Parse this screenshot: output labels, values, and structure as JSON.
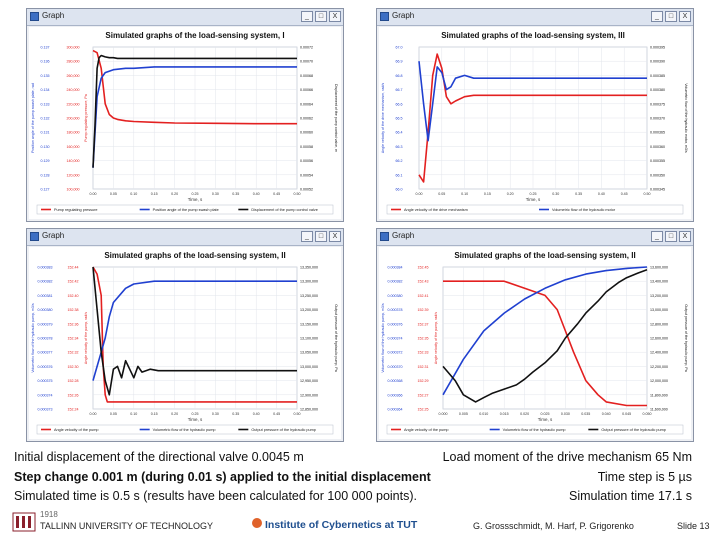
{
  "windows": [
    {
      "title": "Graph",
      "chart_data": {
        "type": "line",
        "title": "Simulated graphs of the load-sensing system, I",
        "xlabel": "Time, s",
        "x_ticks": [
          "0.00",
          "0.05",
          "0.10",
          "0.15",
          "0.20",
          "0.25",
          "0.30",
          "0.35",
          "0.40",
          "0.45",
          "0.50"
        ],
        "xlim": [
          0,
          0.5
        ],
        "left_axis1_label": "Position angle of the pump swash plate, rad",
        "left_axis1_ticks": [
          "0.127",
          "0.128",
          "0.129",
          "0.130",
          "0.131",
          "0.132",
          "0.133",
          "0.134",
          "0.135",
          "0.136",
          "0.137"
        ],
        "left_axis2_label": "Pump regulating pressure, Pa",
        "left_axis2_ticks": [
          "100,000",
          "120,000",
          "140,000",
          "160,000",
          "180,000",
          "200,000",
          "220,000",
          "240,000",
          "260,000",
          "280,000",
          "300,000"
        ],
        "right_axis_label": "Displacement of the pump control valve, m",
        "right_axis_ticks": [
          "0.00052",
          "0.00054",
          "0.00056",
          "0.00058",
          "0.00060",
          "0.00062",
          "0.00064",
          "0.00066",
          "0.00068",
          "0.00070",
          "0.00072"
        ],
        "series": [
          {
            "name": "Pump regulating pressure",
            "color": "#e32020",
            "x": [
              0,
              0.01,
              0.02,
              0.03,
              0.04,
              0.05,
              0.06,
              0.08,
              0.1,
              0.15,
              0.2,
              0.3,
              0.4,
              0.5
            ],
            "values": [
              295000,
              292000,
              270000,
              220000,
              205000,
              200000,
              198000,
              196000,
              195000,
              194000,
              193000,
              192500,
              192000,
              192000
            ]
          },
          {
            "name": "Position angle of the pump swash plate",
            "color": "#2040d0",
            "x": [
              0,
              0.01,
              0.02,
              0.03,
              0.05,
              0.08,
              0.1,
              0.15,
              0.2,
              0.3,
              0.4,
              0.5
            ],
            "values": [
              0.1285,
              0.1335,
              0.1348,
              0.1352,
              0.1354,
              0.1355,
              0.1355,
              0.1356,
              0.1356,
              0.1356,
              0.1356,
              0.1356
            ]
          },
          {
            "name": "Displacement of the pump control valve",
            "color": "#111111",
            "x": [
              0,
              0.005,
              0.01,
              0.015,
              0.02,
              0.03,
              0.04,
              0.05,
              0.06,
              0.08,
              0.1,
              0.15,
              0.2,
              0.3,
              0.4,
              0.5
            ],
            "values": [
              0.00055,
              0.00061,
              0.00069,
              0.000705,
              0.000708,
              0.000706,
              0.000705,
              0.000705,
              0.000704,
              0.000704,
              0.000704,
              0.000704,
              0.000704,
              0.000704,
              0.000704,
              0.000704
            ]
          }
        ]
      }
    },
    {
      "title": "Graph",
      "chart_data": {
        "type": "line",
        "title": "Simulated graphs of the load-sensing system, III",
        "xlabel": "Time, s",
        "x_ticks": [
          "0.00",
          "0.05",
          "0.10",
          "0.15",
          "0.20",
          "0.25",
          "0.30",
          "0.35",
          "0.40",
          "0.45",
          "0.50"
        ],
        "xlim": [
          0,
          0.5
        ],
        "left_axis1_label": "Angle velocity of the drive mechanism, rad/s",
        "left_axis1_ticks": [
          "66.0",
          "66.1",
          "66.2",
          "66.3",
          "66.4",
          "66.5",
          "66.6",
          "66.7",
          "66.8",
          "66.9",
          "67.0"
        ],
        "right_axis_label": "Volumetric flow of the hydraulic motor, m3/s",
        "right_axis_ticks": [
          "0.000345",
          "0.000350",
          "0.000355",
          "0.000360",
          "0.000365",
          "0.000370",
          "0.000375",
          "0.000380",
          "0.000385",
          "0.000390",
          "0.000395"
        ],
        "series": [
          {
            "name": "Angle velocity of the drive mechanism",
            "color": "#e32020",
            "x": [
              0,
              0.01,
              0.02,
              0.03,
              0.04,
              0.05,
              0.06,
              0.07,
              0.08,
              0.1,
              0.12,
              0.15,
              0.2,
              0.3,
              0.4,
              0.5
            ],
            "values": [
              66.1,
              66.05,
              66.4,
              66.8,
              66.95,
              66.85,
              66.65,
              66.6,
              66.62,
              66.65,
              66.66,
              66.66,
              66.66,
              66.66,
              66.66,
              66.66
            ]
          },
          {
            "name": "Volumetric flow of the hydraulic motor",
            "color": "#2040d0",
            "x": [
              0,
              0.01,
              0.02,
              0.03,
              0.04,
              0.05,
              0.06,
              0.07,
              0.08,
              0.1,
              0.12,
              0.15,
              0.2,
              0.3,
              0.4,
              0.5
            ],
            "values": [
              0.00039,
              0.000375,
              0.000362,
              0.000375,
              0.000388,
              0.000386,
              0.00038,
              0.000381,
              0.000384,
              0.000385,
              0.000384,
              0.000384,
              0.000384,
              0.000384,
              0.000384,
              0.000384
            ]
          }
        ]
      }
    },
    {
      "title": "Graph",
      "chart_data": {
        "type": "line",
        "title": "Simulated graphs of the load-sensing system, II",
        "xlabel": "Time, s",
        "x_ticks": [
          "0.00",
          "0.05",
          "0.10",
          "0.15",
          "0.20",
          "0.25",
          "0.30",
          "0.35",
          "0.40",
          "0.45",
          "0.50"
        ],
        "xlim": [
          0,
          0.5
        ],
        "left_axis1_label": "Volumetric flow of the hydraulic pump, m3/s",
        "left_axis1_ticks": [
          "0.000373",
          "0.000374",
          "0.000375",
          "0.000376",
          "0.000377",
          "0.000378",
          "0.000379",
          "0.000380",
          "0.000381",
          "0.000382",
          "0.000383"
        ],
        "left_axis2_label": "Angle velocity of the pump, rad/s",
        "left_axis2_ticks": [
          "152.24",
          "152.26",
          "152.28",
          "152.30",
          "152.32",
          "152.34",
          "152.36",
          "152.38",
          "152.40",
          "152.42",
          "152.44"
        ],
        "right_axis_label": "Output pressure of the hydraulic pump, Pa",
        "right_axis_ticks": [
          "12,850,000",
          "12,900,000",
          "12,950,000",
          "13,000,000",
          "13,050,000",
          "13,100,000",
          "13,150,000",
          "13,200,000",
          "13,250,000",
          "13,300,000",
          "13,350,000"
        ],
        "series": [
          {
            "name": "Angle velocity of the pump",
            "color": "#e32020",
            "x": [
              0,
              0.01,
              0.02,
              0.025,
              0.03,
              0.035,
              0.04,
              0.05,
              0.06,
              0.08,
              0.1,
              0.15,
              0.2,
              0.3,
              0.4,
              0.5
            ],
            "values": [
              152.44,
              152.43,
              152.4,
              152.3,
              152.26,
              152.25,
              152.25,
              152.25,
              152.25,
              152.25,
              152.25,
              152.25,
              152.25,
              152.25,
              152.25,
              152.25
            ]
          },
          {
            "name": "Volumetric flow of the hydraulic pump",
            "color": "#2040d0",
            "x": [
              0,
              0.01,
              0.02,
              0.03,
              0.04,
              0.05,
              0.08,
              0.1,
              0.15,
              0.2,
              0.3,
              0.4,
              0.5
            ],
            "values": [
              0.000375,
              0.000376,
              0.000377,
              0.000378,
              0.0003795,
              0.0003805,
              0.0003815,
              0.0003818,
              0.000382,
              0.000382,
              0.000382,
              0.000382,
              0.000382
            ]
          },
          {
            "name": "Output pressure of the hydraulic pump",
            "color": "#111111",
            "x": [
              0,
              0.01,
              0.02,
              0.03,
              0.04,
              0.05,
              0.06,
              0.07,
              0.08,
              0.09,
              0.1,
              0.11,
              0.12,
              0.14,
              0.16,
              0.2,
              0.3,
              0.4,
              0.5
            ],
            "values": [
              13350000,
              13200000,
              13050000,
              12950000,
              12900000,
              12990000,
              13000000,
              12960000,
              13020000,
              12990000,
              12960000,
              13000000,
              12980000,
              12990000,
              12985000,
              12985000,
              12985000,
              12985000,
              12985000
            ]
          }
        ]
      }
    },
    {
      "title": "Graph",
      "chart_data": {
        "type": "line",
        "title": "Simulated graphs of the load-sensing system, II",
        "xlabel": "Time, s",
        "x_ticks": [
          "0.000",
          "0.005",
          "0.010",
          "0.015",
          "0.020",
          "0.025",
          "0.030",
          "0.035",
          "0.040",
          "0.045",
          "0.050"
        ],
        "xlim": [
          0,
          0.05
        ],
        "left_axis1_label": "Volumetric flow of the hydraulic pump, m3/s",
        "left_axis1_ticks": [
          "0.000364",
          "0.000366",
          "0.000368",
          "0.000370",
          "0.000372",
          "0.000374",
          "0.000376",
          "0.000378",
          "0.000380",
          "0.000382",
          "0.000384"
        ],
        "left_axis2_label": "Angle velocity of the pump, rad/s",
        "left_axis2_ticks": [
          "152.25",
          "152.27",
          "152.29",
          "152.31",
          "152.33",
          "152.35",
          "152.37",
          "152.39",
          "152.41",
          "152.43",
          "152.45"
        ],
        "right_axis_label": "Output pressure of the hydraulic pump, Pa",
        "right_axis_ticks": [
          "11,600,000",
          "11,800,000",
          "12,000,000",
          "12,200,000",
          "12,400,000",
          "12,600,000",
          "12,800,000",
          "13,000,000",
          "13,200,000",
          "13,400,000",
          "13,600,000"
        ],
        "series": [
          {
            "name": "Angle velocity of the pump",
            "color": "#e32020",
            "x": [
              0,
              0.005,
              0.01,
              0.015,
              0.02,
              0.025,
              0.028,
              0.03,
              0.032,
              0.035,
              0.038,
              0.04,
              0.045,
              0.05
            ],
            "values": [
              152.43,
              152.43,
              152.43,
              152.43,
              152.42,
              152.41,
              152.39,
              152.36,
              152.33,
              152.29,
              152.27,
              152.26,
              152.255,
              152.255
            ]
          },
          {
            "name": "Volumetric flow of the hydraulic pump",
            "color": "#2040d0",
            "x": [
              0,
              0.005,
              0.01,
              0.015,
              0.02,
              0.025,
              0.03,
              0.035,
              0.04,
              0.045,
              0.05
            ],
            "values": [
              0.000366,
              0.000371,
              0.000375,
              0.0003775,
              0.0003795,
              0.000381,
              0.0003822,
              0.000383,
              0.0003835,
              0.0003838,
              0.000384
            ]
          },
          {
            "name": "Output pressure of the hydraulic pump",
            "color": "#111111",
            "x": [
              0,
              0.003,
              0.005,
              0.008,
              0.01,
              0.012,
              0.015,
              0.018,
              0.02,
              0.022,
              0.025,
              0.028,
              0.03,
              0.033,
              0.035,
              0.038,
              0.04,
              0.043,
              0.045,
              0.048,
              0.05
            ],
            "values": [
              12200000,
              12000000,
              11800000,
              11700000,
              11760000,
              11820000,
              11880000,
              11940000,
              12020000,
              12120000,
              12250000,
              12420000,
              12600000,
              12800000,
              12950000,
              13120000,
              13250000,
              13380000,
              13450000,
              13520000,
              13560000
            ]
          }
        ]
      }
    }
  ],
  "window_buttons": {
    "minimize": "_",
    "maximize": "□",
    "close": "X"
  },
  "caption": {
    "line1_left": "Initial displacement of the directional valve 0.0045 m",
    "line1_right": "Load moment of the drive mechanism 65 Nm",
    "line2_left": "Step change 0.001 m (during 0.01 s) applied to the initial displacement",
    "line2_right": "Time step is 5 µs",
    "line3_left": "Simulated time is 0.5 s (results have been calculated for 100 000 points).",
    "line3_right": "Simulation time 17.1 s"
  },
  "footer": {
    "year": "1918",
    "university": "TALLINN UNIVERSITY OF TECHNOLOGY",
    "institute": "Institute of Cybernetics at TUT",
    "authors": "G. Grossschmidt, M. Harf, P. Grigorenko",
    "slide": "Slide 13"
  }
}
